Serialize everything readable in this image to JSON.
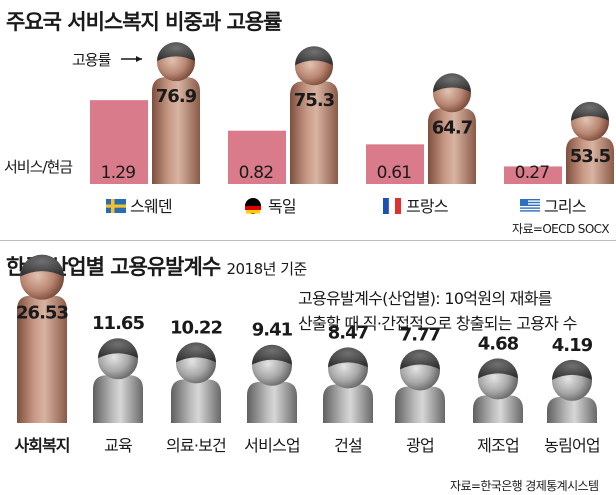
{
  "top": {
    "title": "주요국 서비스복지 비중과 고용률",
    "employment_label": "고용률",
    "ratio_label": "서비스/현금",
    "source": "자료=OECD SOCX"
  },
  "bottom": {
    "title": "한국 산업별 고용유발계수",
    "title_suffix": "2018년 기준",
    "note_line1": "고용유발계수(산업별): 10억원의 재화를",
    "note_line2": "산출할 때 직·간접적으로 창출되는 고용자 수",
    "source": "자료=한국은행 경제통계시스템"
  },
  "colors": {
    "bar_pink": "#d97b8a",
    "figure_brown": "#a5725f",
    "figure_gray": "#8c8c8c",
    "head_dark": "#4f4f4f"
  },
  "chart_data": [
    {
      "type": "bar",
      "title": "주요국 서비스복지 비중과 고용률",
      "categories": [
        "스웨덴",
        "독일",
        "프랑스",
        "그리스"
      ],
      "flags": [
        "sweden-flag-icon",
        "germany-flag-icon",
        "france-flag-icon",
        "greece-flag-icon"
      ],
      "series": [
        {
          "name": "서비스/현금",
          "values": [
            1.29,
            0.82,
            0.61,
            0.27
          ]
        },
        {
          "name": "고용률",
          "values": [
            76.9,
            75.3,
            64.7,
            53.5
          ]
        }
      ]
    },
    {
      "type": "bar",
      "title": "한국 산업별 고용유발계수",
      "categories": [
        "사회복지",
        "교육",
        "의료·보건",
        "서비스업",
        "건설",
        "광업",
        "제조업",
        "농림어업"
      ],
      "values": [
        26.53,
        11.65,
        10.22,
        9.41,
        8.47,
        7.77,
        4.68,
        4.19
      ]
    }
  ]
}
